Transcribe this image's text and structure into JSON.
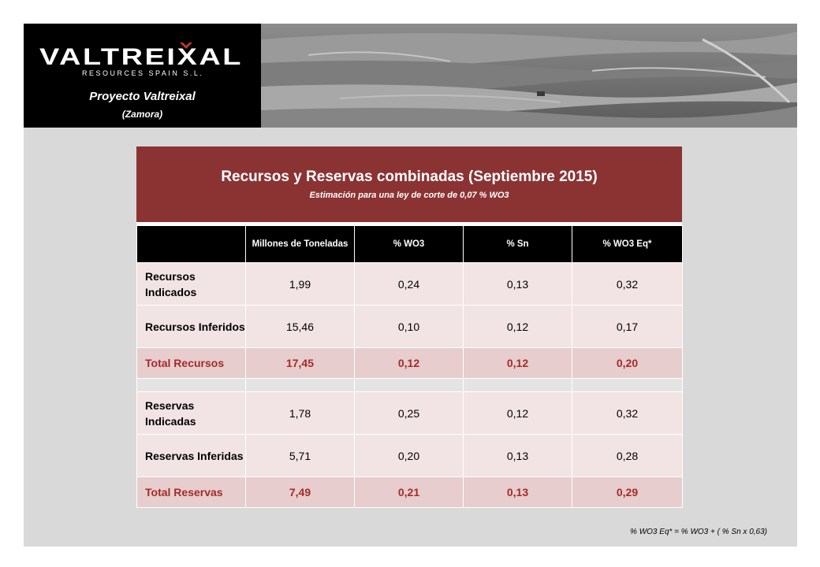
{
  "header": {
    "logo_main": "VALTREIXAL",
    "logo_sub": "RESOURCES SPAIN S.L.",
    "project_title": "Proyecto Valtreixal",
    "project_location": "(Zamora)",
    "photo_icon": "open-pit-mine-photo"
  },
  "table": {
    "title": "Recursos y Reservas combinadas (Septiembre 2015)",
    "subtitle": "Estimación para una ley de corte de 0,07 % WO3",
    "columns": [
      "",
      "Millones de Toneladas",
      "% WO3",
      "% Sn",
      "% WO3 Eq*"
    ],
    "rows": [
      {
        "label": "Recursos Indicados",
        "values": [
          "1,99",
          "0,24",
          "0,13",
          "0,32"
        ],
        "type": "light"
      },
      {
        "label": "Recursos Inferidos",
        "values": [
          "15,46",
          "0,10",
          "0,12",
          "0,17"
        ],
        "type": "light"
      },
      {
        "label": "Total Recursos",
        "values": [
          "17,45",
          "0,12",
          "0,12",
          "0,20"
        ],
        "type": "total"
      },
      {
        "label": "",
        "values": [
          "",
          "",
          "",
          ""
        ],
        "type": "empty"
      },
      {
        "label": "Reservas Indicadas",
        "values": [
          "1,78",
          "0,25",
          "0,12",
          "0,32"
        ],
        "type": "light"
      },
      {
        "label": "Reservas Inferidas",
        "values": [
          "5,71",
          "0,20",
          "0,13",
          "0,28"
        ],
        "type": "light"
      },
      {
        "label": "Total Reservas",
        "values": [
          "7,49",
          "0,21",
          "0,13",
          "0,29"
        ],
        "type": "total"
      }
    ]
  },
  "footnote": "% WO3 Eq* = % WO3 + ( % Sn x 0,63)",
  "colors": {
    "title_band": "#8b3333",
    "total_text": "#a52a2a",
    "row_light": "#f2e4e4",
    "row_total": "#e7cdcd"
  }
}
